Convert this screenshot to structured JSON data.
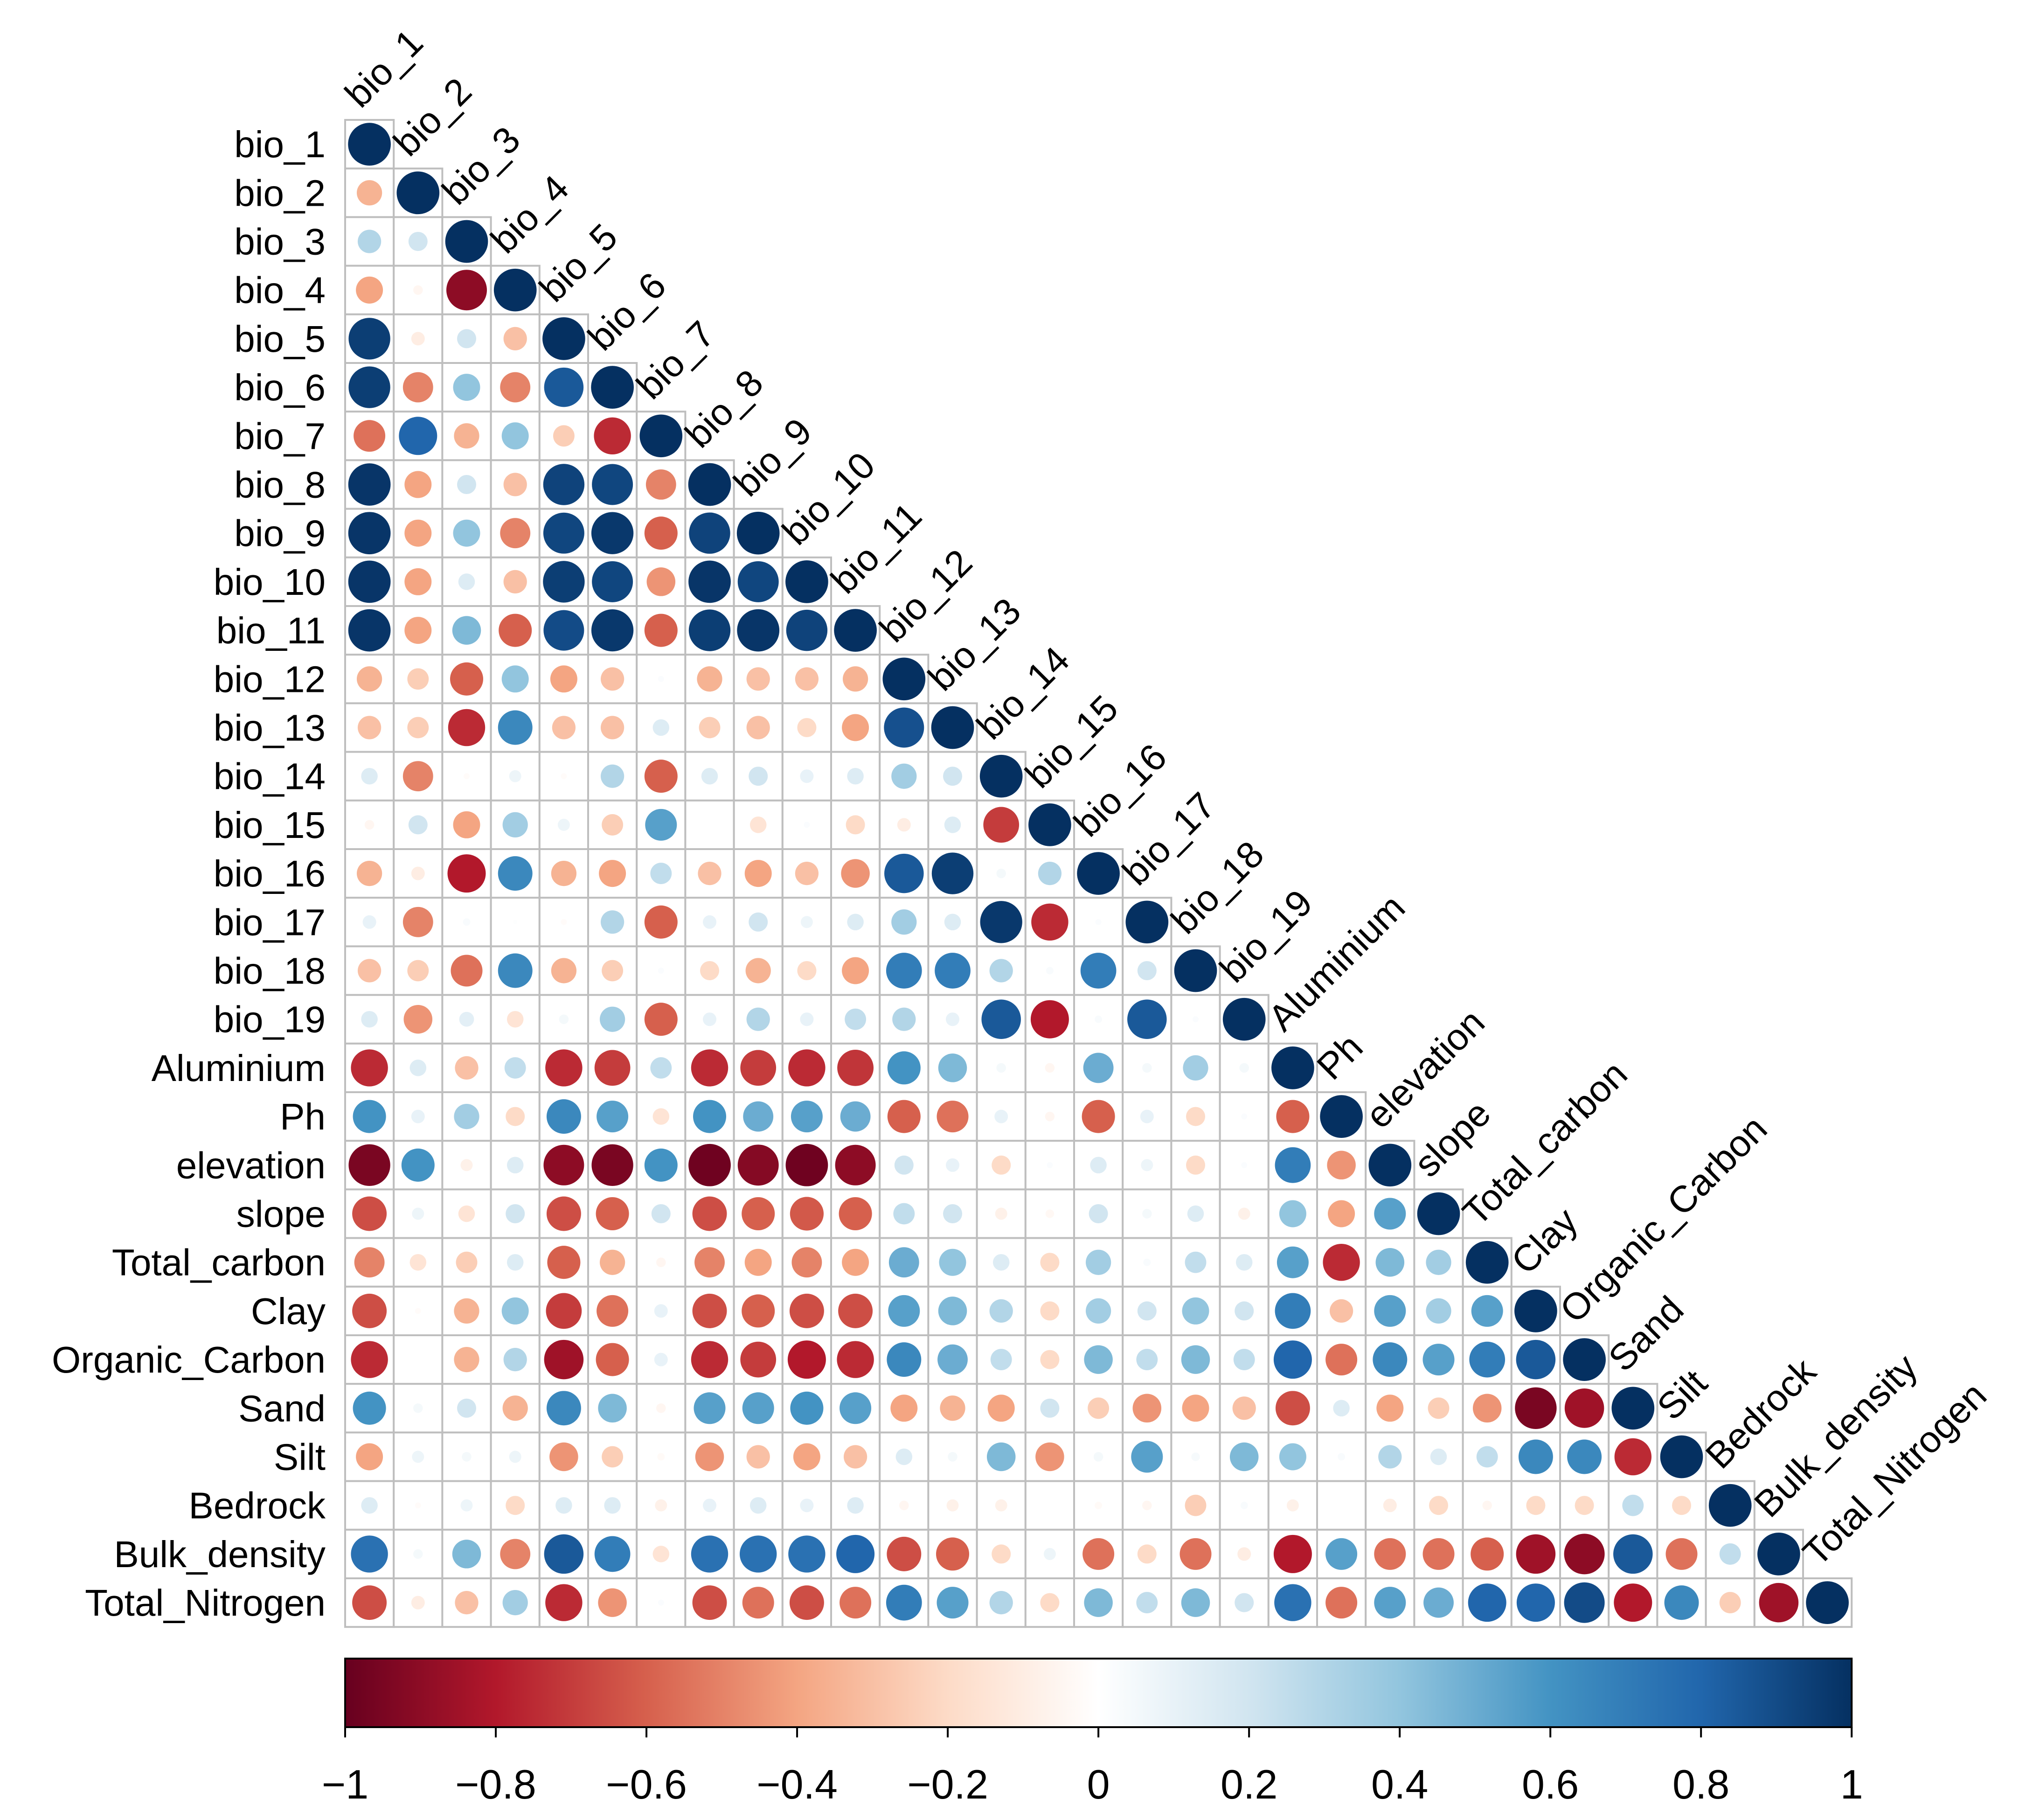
{
  "chart_data": {
    "type": "heatmap",
    "subtype": "correlation-circle-lower-triangle",
    "title": "",
    "variables": [
      "bio_1",
      "bio_2",
      "bio_3",
      "bio_4",
      "bio_5",
      "bio_6",
      "bio_7",
      "bio_8",
      "bio_9",
      "bio_10",
      "bio_11",
      "bio_12",
      "bio_13",
      "bio_14",
      "bio_15",
      "bio_16",
      "bio_17",
      "bio_18",
      "bio_19",
      "Aluminium",
      "Ph",
      "elevation",
      "slope",
      "Total_carbon",
      "Clay",
      "Organic_Carbon",
      "Sand",
      "Silt",
      "Bedrock",
      "Bulk_density",
      "Total_Nitrogen"
    ],
    "lower_triangle": [
      [],
      [
        -0.35
      ],
      [
        0.3,
        0.2
      ],
      [
        -0.4,
        -0.05,
        -0.9
      ],
      [
        0.95,
        -0.1,
        0.2,
        -0.3
      ],
      [
        0.95,
        -0.5,
        0.4,
        -0.5,
        0.85
      ],
      [
        -0.55,
        0.8,
        -0.35,
        0.4,
        -0.25,
        -0.75
      ],
      [
        0.98,
        -0.4,
        0.2,
        -0.3,
        0.93,
        0.92,
        -0.5
      ],
      [
        0.98,
        -0.4,
        0.4,
        -0.5,
        0.92,
        0.97,
        -0.6,
        0.93
      ],
      [
        0.98,
        -0.4,
        0.15,
        -0.3,
        0.95,
        0.92,
        -0.45,
        0.98,
        0.92
      ],
      [
        0.98,
        -0.4,
        0.45,
        -0.6,
        0.9,
        0.97,
        -0.6,
        0.95,
        0.98,
        0.93
      ],
      [
        -0.35,
        -0.25,
        -0.6,
        0.4,
        -0.4,
        -0.3,
        0.02,
        -0.35,
        -0.3,
        -0.3,
        -0.35
      ],
      [
        -0.3,
        -0.25,
        -0.75,
        0.65,
        -0.3,
        -0.3,
        0.15,
        -0.25,
        -0.3,
        -0.2,
        -0.4,
        0.88
      ],
      [
        0.15,
        -0.5,
        -0.02,
        0.08,
        -0.02,
        0.3,
        -0.6,
        0.15,
        0.2,
        0.1,
        0.15,
        0.35,
        0.2
      ],
      [
        -0.05,
        0.2,
        -0.4,
        0.35,
        0.08,
        -0.25,
        0.55,
        0,
        -0.15,
        0.02,
        -0.2,
        -0.1,
        0.15,
        -0.7
      ],
      [
        -0.35,
        -0.1,
        -0.8,
        0.65,
        -0.35,
        -0.4,
        0.25,
        -0.3,
        -0.4,
        -0.3,
        -0.45,
        0.85,
        0.95,
        0.05,
        0.3
      ],
      [
        0.1,
        -0.5,
        0.03,
        0.01,
        -0.02,
        0.3,
        -0.6,
        0.1,
        0.2,
        0.08,
        0.15,
        0.35,
        0.15,
        0.97,
        -0.75,
        0.02
      ],
      [
        -0.3,
        -0.25,
        -0.55,
        0.65,
        -0.35,
        -0.25,
        0.02,
        -0.2,
        -0.35,
        -0.2,
        -0.4,
        0.7,
        0.7,
        0.3,
        0.03,
        0.7,
        0.2
      ],
      [
        0.15,
        -0.45,
        0.12,
        -0.15,
        0.05,
        0.35,
        -0.6,
        0.1,
        0.3,
        0.1,
        0.25,
        0.3,
        0.1,
        0.85,
        -0.8,
        0.03,
        0.85,
        0.02
      ],
      [
        -0.75,
        0.15,
        -0.3,
        0.25,
        -0.75,
        -0.7,
        0.25,
        -0.75,
        -0.7,
        -0.75,
        -0.72,
        0.6,
        0.45,
        0.05,
        -0.05,
        0.5,
        0.05,
        0.35,
        0.05
      ],
      [
        0.6,
        0.1,
        0.35,
        -0.2,
        0.65,
        0.55,
        -0.15,
        0.6,
        0.5,
        0.55,
        0.5,
        -0.6,
        -0.55,
        0.1,
        -0.05,
        -0.6,
        0.1,
        -0.2,
        0.02,
        -0.6
      ],
      [
        -0.95,
        0.6,
        -0.08,
        0.15,
        -0.9,
        -0.95,
        0.6,
        -0.98,
        -0.92,
        -0.98,
        -0.9,
        0.2,
        0.1,
        -0.2,
        0.02,
        0.15,
        0.08,
        -0.2,
        0.02,
        0.7,
        -0.45
      ],
      [
        -0.65,
        0.08,
        -0.15,
        0.2,
        -0.65,
        -0.6,
        0.2,
        -0.65,
        -0.6,
        -0.62,
        -0.6,
        0.25,
        0.2,
        -0.08,
        -0.04,
        0.2,
        0.05,
        0.15,
        -0.08,
        0.4,
        -0.4,
        0.55
      ],
      [
        -0.5,
        -0.15,
        -0.25,
        0.15,
        -0.6,
        -0.35,
        -0.05,
        -0.5,
        -0.4,
        -0.5,
        -0.4,
        0.5,
        0.4,
        0.15,
        -0.2,
        0.35,
        0.03,
        0.25,
        0.15,
        0.55,
        -0.75,
        0.45,
        0.35
      ],
      [
        -0.65,
        -0.02,
        -0.35,
        0.4,
        -0.7,
        -0.55,
        0.1,
        -0.65,
        -0.6,
        -0.65,
        -0.65,
        0.55,
        0.45,
        0.3,
        -0.2,
        0.35,
        0.2,
        0.4,
        0.2,
        0.7,
        -0.3,
        0.55,
        0.35,
        0.55
      ],
      [
        -0.75,
        0,
        -0.35,
        0.3,
        -0.85,
        -0.6,
        0.1,
        -0.75,
        -0.7,
        -0.8,
        -0.75,
        0.65,
        0.5,
        0.25,
        -0.2,
        0.45,
        0.25,
        0.45,
        0.25,
        0.8,
        -0.55,
        0.65,
        0.55,
        0.7,
        0.85
      ],
      [
        0.6,
        0.05,
        0.2,
        -0.35,
        0.65,
        0.45,
        -0.05,
        0.55,
        0.55,
        0.6,
        0.55,
        -0.4,
        -0.35,
        -0.4,
        0.2,
        -0.25,
        -0.45,
        -0.4,
        -0.3,
        -0.65,
        0.15,
        -0.4,
        -0.25,
        -0.45,
        -0.95,
        -0.85
      ],
      [
        -0.4,
        0.08,
        0.05,
        0.08,
        -0.45,
        -0.25,
        -0.03,
        -0.45,
        -0.3,
        -0.4,
        -0.3,
        0.15,
        0.05,
        0.45,
        -0.45,
        0.05,
        0.55,
        0.04,
        0.45,
        0.4,
        0.03,
        0.3,
        0.15,
        0.25,
        0.65,
        0.65,
        -0.75
      ],
      [
        0.15,
        -0.02,
        0.08,
        -0.2,
        0.15,
        0.15,
        -0.08,
        0.1,
        0.15,
        0.1,
        0.15,
        -0.05,
        -0.08,
        -0.08,
        0,
        -0.03,
        -0.05,
        -0.25,
        0.03,
        -0.08,
        0,
        -0.1,
        -0.2,
        -0.05,
        -0.2,
        -0.2,
        0.25,
        -0.2
      ],
      [
        0.75,
        0.05,
        0.45,
        -0.5,
        0.85,
        0.7,
        -0.15,
        0.75,
        0.75,
        0.75,
        0.8,
        -0.65,
        -0.6,
        -0.2,
        0.08,
        -0.55,
        -0.2,
        -0.55,
        -0.1,
        -0.8,
        0.55,
        -0.55,
        -0.55,
        -0.6,
        -0.85,
        -0.9,
        0.85,
        -0.55,
        0.25
      ],
      [
        -0.65,
        -0.1,
        -0.3,
        0.35,
        -0.75,
        -0.45,
        0.02,
        -0.65,
        -0.55,
        -0.65,
        -0.55,
        0.7,
        0.55,
        0.3,
        -0.2,
        0.45,
        0.25,
        0.45,
        0.2,
        0.75,
        -0.55,
        0.55,
        0.5,
        0.8,
        0.8,
        0.9,
        -0.8,
        0.65,
        -0.25,
        -0.85
      ]
    ],
    "diagonal": 1,
    "color_scale": {
      "range": [
        -1,
        1
      ],
      "stops": [
        "#67001F",
        "#B2182B",
        "#D6604D",
        "#F4A582",
        "#FDDBC7",
        "#FFFFFF",
        "#D1E5F0",
        "#92C5DE",
        "#4393C3",
        "#2166AC",
        "#053061"
      ],
      "tick_labels": [
        "−1",
        "−0.8",
        "−0.6",
        "−0.4",
        "−0.2",
        "0",
        "0.2",
        "0.4",
        "0.6",
        "0.8",
        "1"
      ]
    },
    "legend_placement": "bottom",
    "grid_color": "#BEBEBE"
  }
}
